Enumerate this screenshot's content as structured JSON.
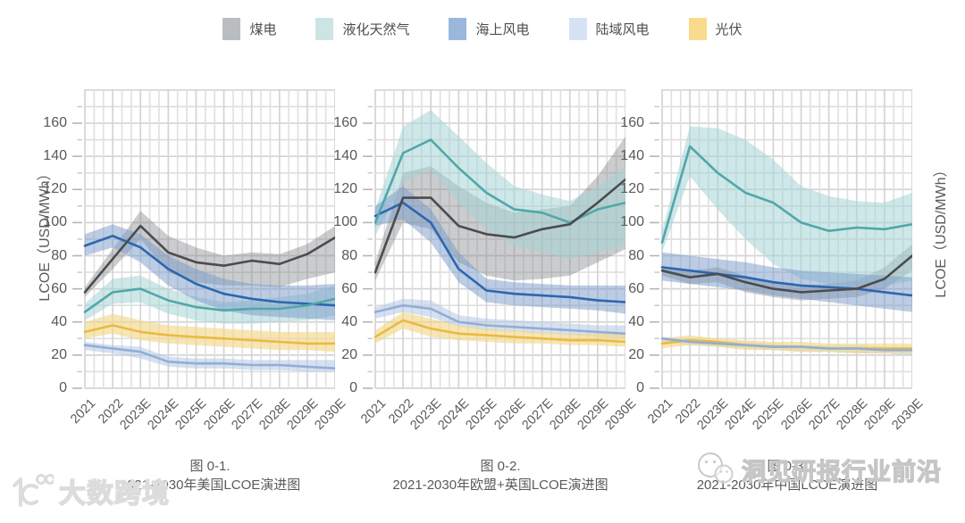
{
  "page": {
    "background": "#ffffff"
  },
  "legend": {
    "items": [
      {
        "key": "coal",
        "label": "煤电",
        "swatch": "#babdbf"
      },
      {
        "key": "lng",
        "label": "液化天然气",
        "swatch": "#cde4e4"
      },
      {
        "key": "offshore",
        "label": "海上风电",
        "swatch": "#9bb8dc"
      },
      {
        "key": "onshore",
        "label": "陆域风电",
        "swatch": "#d7e2f4"
      },
      {
        "key": "solar",
        "label": "光伏",
        "swatch": "#f8db8d"
      }
    ]
  },
  "series_styles": {
    "coal": {
      "line": "#4b4c4e",
      "band": "rgba(130,133,136,0.42)"
    },
    "lng": {
      "line": "#50a7aa",
      "band": "rgba(165,211,213,0.55)"
    },
    "offshore": {
      "line": "#2b67af",
      "band": "rgba(120,153,201,0.50)"
    },
    "onshore": {
      "line": "#93add3",
      "band": "rgba(178,200,230,0.55)"
    },
    "solar": {
      "line": "#eaba41",
      "band": "rgba(242,217,140,0.65)"
    }
  },
  "y_axis": {
    "title": "LCOE（USD/MWh）",
    "ticks": [
      0,
      20,
      40,
      60,
      80,
      100,
      120,
      140,
      160
    ]
  },
  "watermarks": {
    "panel3_text": "洞见研报行业前沿",
    "bottom_left_text": "大数跨境"
  },
  "chart_data": [
    {
      "type": "line",
      "title_lines": [
        "图 0-1.",
        "2021-2030年美国LCOE演进图"
      ],
      "categories": [
        "2021",
        "2022",
        "2023E",
        "2024E",
        "2025E",
        "2026E",
        "2027E",
        "2028E",
        "2029E",
        "2030E"
      ],
      "ylabel": "LCOE（USD/MWh）",
      "ylim": [
        0,
        180
      ],
      "grid": true,
      "series": [
        {
          "key": "coal",
          "name": "煤电",
          "values": [
            58,
            78,
            98,
            82,
            76,
            74,
            77,
            75,
            81,
            91
          ],
          "upper": [
            61,
            84,
            107,
            92,
            85,
            80,
            82,
            81,
            87,
            98
          ],
          "lower": [
            55,
            72,
            90,
            70,
            64,
            62,
            62,
            61,
            66,
            70
          ]
        },
        {
          "key": "lng",
          "name": "液化天然气",
          "values": [
            46,
            58,
            60,
            53,
            49,
            47,
            48,
            48,
            50,
            54
          ],
          "upper": [
            51,
            66,
            68,
            60,
            55,
            52,
            53,
            55,
            57,
            62
          ],
          "lower": [
            41,
            51,
            52,
            45,
            41,
            39,
            39,
            40,
            41,
            44
          ]
        },
        {
          "key": "offshore",
          "name": "海上风电",
          "values": [
            86,
            92,
            85,
            72,
            63,
            57,
            54,
            52,
            51,
            50
          ],
          "upper": [
            93,
            99,
            93,
            80,
            72,
            66,
            63,
            62,
            62,
            63
          ],
          "lower": [
            80,
            85,
            76,
            62,
            53,
            47,
            44,
            43,
            42,
            41
          ]
        },
        {
          "key": "onshore",
          "name": "陆域风电",
          "values": [
            26,
            24,
            22,
            16,
            15,
            15,
            14,
            14,
            13,
            12
          ],
          "upper": [
            28,
            26,
            25,
            19,
            18,
            18,
            17,
            17,
            17,
            17
          ],
          "lower": [
            23,
            21,
            18,
            13,
            12,
            12,
            11,
            11,
            10,
            10
          ]
        },
        {
          "key": "solar",
          "name": "光伏",
          "values": [
            34,
            38,
            34,
            32,
            31,
            30,
            29,
            28,
            27,
            27
          ],
          "upper": [
            40,
            45,
            41,
            38,
            37,
            36,
            35,
            34,
            34,
            34
          ],
          "lower": [
            30,
            33,
            29,
            27,
            26,
            25,
            24,
            23,
            23,
            22
          ]
        }
      ]
    },
    {
      "type": "line",
      "title_lines": [
        "图 0-2.",
        "2021-2030年欧盟+英国LCOE演进图"
      ],
      "categories": [
        "2021",
        "2022",
        "2023E",
        "2024E",
        "2025E",
        "2026E",
        "2027E",
        "2028E",
        "2029E",
        "2030E"
      ],
      "ylabel": "LCOE（USD/MWh）",
      "ylim": [
        0,
        180
      ],
      "grid": true,
      "series": [
        {
          "key": "coal",
          "name": "煤电",
          "values": [
            70,
            115,
            115,
            98,
            93,
            91,
            96,
            99,
            112,
            126
          ],
          "upper": [
            76,
            130,
            134,
            122,
            112,
            106,
            108,
            110,
            128,
            152
          ],
          "lower": [
            65,
            100,
            96,
            76,
            68,
            65,
            66,
            68,
            76,
            84
          ]
        },
        {
          "key": "lng",
          "name": "液化天然气",
          "values": [
            100,
            142,
            150,
            133,
            118,
            108,
            106,
            100,
            108,
            112
          ],
          "upper": [
            108,
            158,
            168,
            152,
            136,
            122,
            117,
            113,
            122,
            134
          ],
          "lower": [
            92,
            124,
            132,
            112,
            96,
            86,
            82,
            78,
            82,
            86
          ]
        },
        {
          "key": "offshore",
          "name": "海上风电",
          "values": [
            104,
            112,
            100,
            72,
            59,
            57,
            56,
            55,
            53,
            52
          ],
          "upper": [
            110,
            122,
            108,
            82,
            66,
            64,
            63,
            62,
            62,
            62
          ],
          "lower": [
            98,
            102,
            88,
            64,
            52,
            50,
            49,
            48,
            47,
            45
          ]
        },
        {
          "key": "onshore",
          "name": "陆域风电",
          "values": [
            46,
            50,
            48,
            40,
            38,
            37,
            36,
            35,
            34,
            33
          ],
          "upper": [
            49,
            54,
            53,
            44,
            42,
            41,
            40,
            39,
            38,
            38
          ],
          "lower": [
            42,
            46,
            43,
            37,
            35,
            34,
            33,
            32,
            31,
            30
          ]
        },
        {
          "key": "solar",
          "name": "光伏",
          "values": [
            31,
            41,
            36,
            33,
            32,
            31,
            30,
            29,
            29,
            28
          ],
          "upper": [
            35,
            46,
            42,
            38,
            36,
            35,
            34,
            33,
            33,
            33
          ],
          "lower": [
            27,
            36,
            31,
            29,
            28,
            27,
            27,
            26,
            26,
            25
          ]
        }
      ]
    },
    {
      "type": "line",
      "title_lines": [
        "图 0-3.",
        "2021-2030年中国LCOE演进图"
      ],
      "categories": [
        "2021",
        "2022",
        "2023E",
        "2024E",
        "2025E",
        "2026E",
        "2027E",
        "2028E",
        "2029E",
        "2030E"
      ],
      "ylabel": "LCOE（USD/MWh）",
      "ylim": [
        0,
        180
      ],
      "grid": true,
      "series": [
        {
          "key": "coal",
          "name": "煤电",
          "values": [
            71,
            67,
            69,
            64,
            60,
            58,
            59,
            60,
            66,
            80
          ],
          "upper": [
            74,
            71,
            73,
            68,
            64,
            62,
            63,
            65,
            73,
            87
          ],
          "lower": [
            68,
            63,
            64,
            58,
            55,
            53,
            54,
            55,
            60,
            71
          ]
        },
        {
          "key": "lng",
          "name": "液化天然气",
          "values": [
            88,
            146,
            130,
            118,
            112,
            100,
            95,
            97,
            96,
            99
          ],
          "upper": [
            95,
            158,
            157,
            150,
            138,
            122,
            116,
            113,
            112,
            118
          ],
          "lower": [
            82,
            128,
            108,
            90,
            75,
            66,
            63,
            63,
            62,
            65
          ]
        },
        {
          "key": "offshore",
          "name": "海上风电",
          "values": [
            73,
            71,
            69,
            67,
            64,
            62,
            61,
            60,
            58,
            56
          ],
          "upper": [
            82,
            80,
            78,
            76,
            73,
            71,
            70,
            69,
            68,
            67
          ],
          "lower": [
            65,
            63,
            61,
            59,
            56,
            54,
            52,
            50,
            48,
            46
          ]
        },
        {
          "key": "onshore",
          "name": "陆域风电",
          "values": [
            30,
            28,
            27,
            26,
            25,
            25,
            24,
            24,
            23,
            23
          ],
          "upper": [
            31,
            30,
            29,
            28,
            27,
            26,
            26,
            26,
            25,
            25
          ],
          "lower": [
            28,
            26,
            25,
            24,
            23,
            22,
            22,
            21,
            21,
            20
          ]
        },
        {
          "key": "solar",
          "name": "光伏",
          "values": [
            27,
            29,
            28,
            26,
            25,
            25,
            24,
            24,
            24,
            24
          ],
          "upper": [
            30,
            32,
            30,
            29,
            28,
            28,
            27,
            27,
            27,
            27
          ],
          "lower": [
            24,
            26,
            25,
            23,
            23,
            22,
            22,
            21,
            21,
            21
          ]
        }
      ]
    }
  ]
}
